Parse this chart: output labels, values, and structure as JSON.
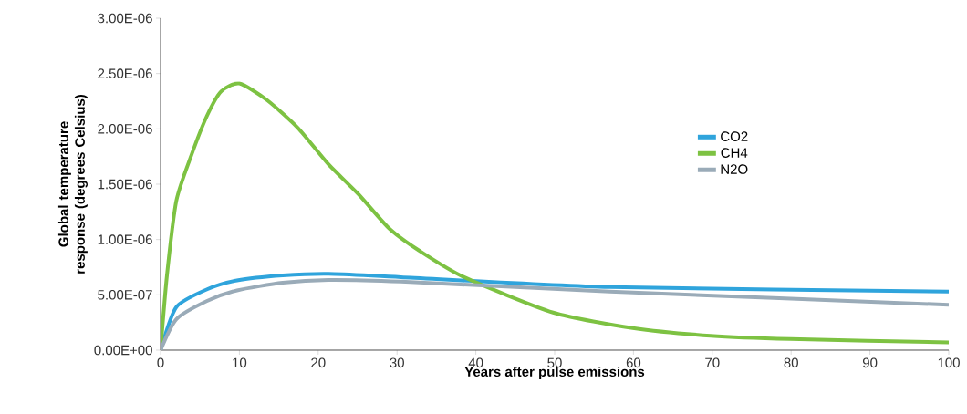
{
  "chart_data": {
    "type": "line",
    "xlabel": "Years after pulse emissions",
    "ylabel": "Global temperature response (degrees Celsius)",
    "xlim": [
      0,
      100
    ],
    "xticks": [
      0,
      10,
      20,
      30,
      40,
      50,
      60,
      70,
      80,
      90,
      100
    ],
    "ylim": [
      0,
      3e-06
    ],
    "yticks": [
      {
        "value": 0,
        "label": "0.00E+00"
      },
      {
        "value": 5e-07,
        "label": "5.00E-07"
      },
      {
        "value": 1e-06,
        "label": "1.00E-06"
      },
      {
        "value": 1.5e-06,
        "label": "1.50E-06"
      },
      {
        "value": 2e-06,
        "label": "2.00E-06"
      },
      {
        "value": 2.5e-06,
        "label": "2.50E-06"
      },
      {
        "value": 3e-06,
        "label": "3.00E-06"
      }
    ],
    "grid": false,
    "legend": "right",
    "marker": "none",
    "line_style": "solid",
    "series": [
      {
        "name": "CO2",
        "color": "#2fa4dc",
        "x": [
          0,
          2,
          5.9,
          9.7,
          15.5,
          21.3,
          30.5,
          57,
          100
        ],
        "values": [
          0,
          3.9e-07,
          5.5e-07,
          6.3e-07,
          6.75e-07,
          6.9e-07,
          6.6e-07,
          5.7e-07,
          5.3e-07
        ]
      },
      {
        "name": "CH4",
        "color": "#7dc242",
        "x": [
          0,
          0.8,
          2,
          3.9,
          5.9,
          7.7,
          10,
          13.5,
          17.4,
          21.3,
          25.1,
          29,
          32.8,
          38.5,
          49.8,
          59.9,
          69.8,
          79.9,
          100
        ],
        "values": [
          0,
          6.7e-07,
          1.35e-06,
          1.76e-06,
          2.12e-06,
          2.34e-06,
          2.41e-06,
          2.26e-06,
          2.01e-06,
          1.68e-06,
          1.41e-06,
          1.1e-06,
          9e-07,
          6.6e-07,
          3.4e-07,
          2e-07,
          1.3e-07,
          1e-07,
          7e-08
        ]
      },
      {
        "name": "N2O",
        "color": "#9aabb8",
        "x": [
          0,
          2,
          5.9,
          9.7,
          15.5,
          21.3,
          30.5,
          57,
          100
        ],
        "values": [
          0,
          2.8e-07,
          4.45e-07,
          5.4e-07,
          6.1e-07,
          6.35e-07,
          6.2e-07,
          5.3e-07,
          4.1e-07
        ]
      }
    ]
  }
}
